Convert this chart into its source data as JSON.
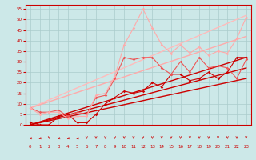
{
  "background_color": "#cce8e8",
  "grid_color": "#aacccc",
  "xlabel_color": "#cc0000",
  "xlabel_fontsize": 6,
  "xlim": [
    -0.5,
    23.5
  ],
  "ylim": [
    0,
    57
  ],
  "yticks": [
    0,
    5,
    10,
    15,
    20,
    25,
    30,
    35,
    40,
    45,
    50,
    55
  ],
  "xticks": [
    0,
    1,
    2,
    3,
    4,
    5,
    6,
    7,
    8,
    9,
    10,
    11,
    12,
    13,
    14,
    15,
    16,
    17,
    18,
    19,
    20,
    21,
    22,
    23
  ],
  "lines": [
    {
      "x": [
        0,
        1,
        2,
        3,
        4,
        5,
        6,
        7,
        8,
        9,
        10,
        11,
        12,
        13,
        14,
        15,
        16,
        17,
        18,
        19,
        20,
        21,
        22,
        23
      ],
      "y": [
        1,
        0,
        0,
        4,
        5,
        1,
        1,
        5,
        10,
        13,
        16,
        15,
        16,
        20,
        18,
        24,
        24,
        21,
        22,
        25,
        22,
        25,
        32,
        32
      ],
      "color": "#cc0000",
      "linewidth": 0.8,
      "marker": "D",
      "markersize": 1.8,
      "alpha": 1.0
    },
    {
      "x": [
        0,
        23
      ],
      "y": [
        0,
        22
      ],
      "color": "#cc0000",
      "linewidth": 1.0,
      "marker": null,
      "markersize": 0,
      "alpha": 1.0
    },
    {
      "x": [
        0,
        23
      ],
      "y": [
        0,
        27
      ],
      "color": "#cc0000",
      "linewidth": 1.0,
      "marker": null,
      "markersize": 0,
      "alpha": 1.0
    },
    {
      "x": [
        0,
        23
      ],
      "y": [
        0,
        32
      ],
      "color": "#cc0000",
      "linewidth": 1.0,
      "marker": null,
      "markersize": 0,
      "alpha": 1.0
    },
    {
      "x": [
        0,
        1,
        2,
        3,
        4,
        5,
        6,
        7,
        8,
        9,
        10,
        11,
        12,
        13,
        14,
        15,
        16,
        17,
        18,
        19,
        20,
        21,
        22,
        23
      ],
      "y": [
        8,
        6,
        6,
        7,
        4,
        6,
        5,
        13,
        14,
        22,
        32,
        31,
        32,
        32,
        27,
        24,
        30,
        25,
        32,
        27,
        28,
        27,
        22,
        31
      ],
      "color": "#ee5555",
      "linewidth": 0.8,
      "marker": "D",
      "markersize": 1.8,
      "alpha": 1.0
    },
    {
      "x": [
        0,
        1,
        2,
        3,
        4,
        5,
        6,
        7,
        8,
        9,
        10,
        11,
        12,
        13,
        14,
        15,
        16,
        17,
        18,
        19,
        20,
        21,
        22,
        23
      ],
      "y": [
        8,
        5,
        6,
        6,
        3,
        4,
        4,
        14,
        15,
        23,
        38,
        46,
        55,
        46,
        38,
        34,
        38,
        34,
        37,
        33,
        35,
        34,
        41,
        51
      ],
      "color": "#ffaaaa",
      "linewidth": 0.8,
      "marker": "D",
      "markersize": 1.8,
      "alpha": 1.0
    },
    {
      "x": [
        0,
        23
      ],
      "y": [
        8,
        52
      ],
      "color": "#ffbbbb",
      "linewidth": 1.0,
      "marker": null,
      "markersize": 0,
      "alpha": 1.0
    },
    {
      "x": [
        0,
        23
      ],
      "y": [
        8,
        42
      ],
      "color": "#ffaaaa",
      "linewidth": 1.0,
      "marker": null,
      "markersize": 0,
      "alpha": 1.0
    }
  ]
}
